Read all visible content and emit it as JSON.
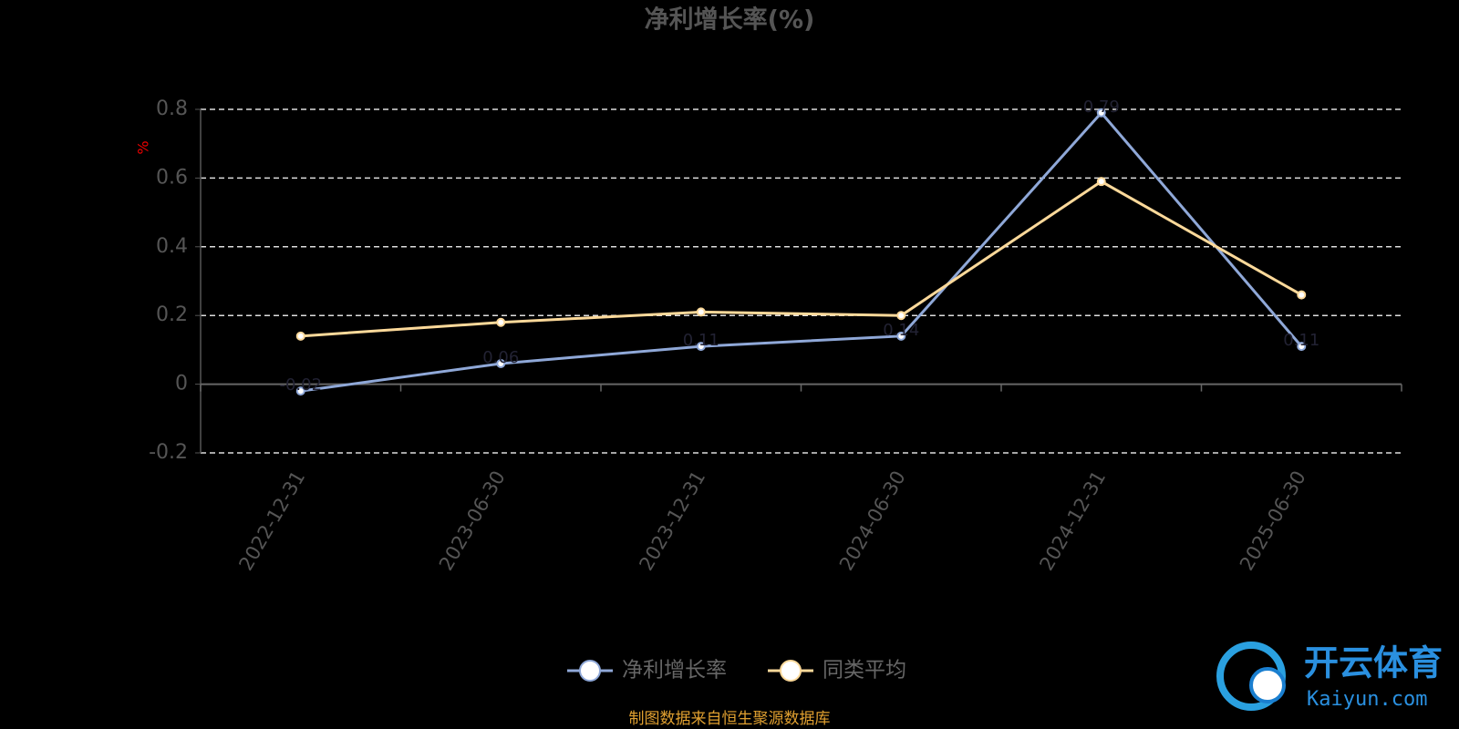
{
  "chart_data": {
    "type": "line",
    "title": "净利增长率(%)",
    "y_label": "%",
    "categories": [
      "2022-12-31",
      "2023-06-30",
      "2023-12-31",
      "2024-06-30",
      "2024-12-31",
      "2025-06-30"
    ],
    "series": [
      {
        "name": "净利增长率",
        "color": "#8fa8d8",
        "values": [
          -0.02,
          0.06,
          0.11,
          0.14,
          0.79,
          0.11
        ],
        "show_labels": true
      },
      {
        "name": "同类平均",
        "color": "#fcd99a",
        "values": [
          0.14,
          0.18,
          0.21,
          0.2,
          0.59,
          0.26
        ]
      }
    ],
    "ylim": [
      -0.2,
      0.8
    ],
    "yticks": [
      0.8,
      0.6,
      0.4,
      0.2,
      0,
      -0.2
    ],
    "grid": true,
    "source": "制图数据来自恒生聚源数据库"
  },
  "watermark": {
    "brand": "开云体育",
    "url": "Kaiyun.com"
  }
}
